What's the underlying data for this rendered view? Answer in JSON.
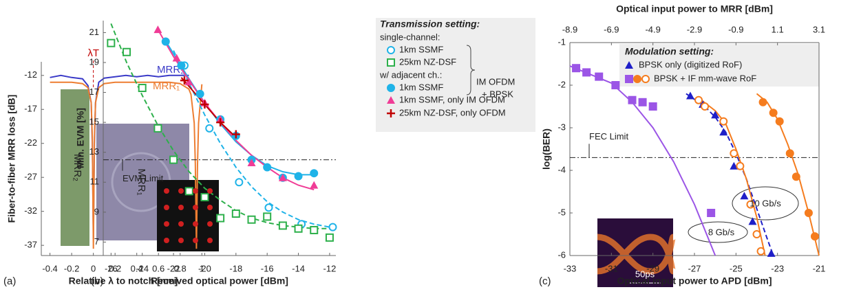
{
  "chart_data": [
    {
      "type": "line",
      "panel_label": "(a)",
      "x_label": "Relative λ to notch [nm]",
      "y_label": "Fiber-to-fiber MRR loss [dB]",
      "xlim": [
        -0.48,
        1.03
      ],
      "ylim": [
        -38.5,
        -10
      ],
      "xticks": [
        -0.4,
        -0.2,
        0,
        0.2,
        0.4,
        0.6,
        0.8,
        1
      ],
      "yticks": [
        -12,
        -17,
        -22,
        -27,
        -32,
        -37
      ],
      "marker_label": "λT",
      "marker_x": 0,
      "inset_labels": [
        "MRR₂",
        "MRR₁"
      ],
      "x": [
        -0.4,
        -0.3,
        -0.2,
        -0.1,
        -0.05,
        -0.02,
        -0.01,
        0,
        0.01,
        0.02,
        0.05,
        0.1,
        0.2,
        0.3,
        0.4,
        0.5,
        0.6,
        0.7,
        0.8,
        0.88,
        0.9,
        0.93,
        0.94,
        0.95,
        0.96,
        0.97,
        1.0
      ],
      "series": [
        {
          "name": "MRR₂",
          "color": "#3a3ac8",
          "values": [
            -12.3,
            -12,
            -12.3,
            -12.5,
            -13.5,
            -16,
            -22,
            -36,
            -22,
            -16,
            -13,
            -12.4,
            -12.2,
            -12,
            -12.2,
            -12,
            -12.2,
            -12,
            -12,
            -12,
            null,
            null,
            null,
            null,
            null,
            null,
            null
          ]
        },
        {
          "name": "MRR₁",
          "color": "#ed7d31",
          "values": [
            -13,
            -13,
            -13,
            -13.2,
            -13.8,
            -16,
            -21,
            -37.5,
            -21,
            -16,
            -13.8,
            -13.2,
            -13,
            -13,
            -13,
            -13,
            -13,
            -13,
            -13.2,
            -14,
            -14.8,
            -19,
            -25,
            -37.5,
            -25,
            -19,
            -13.3
          ]
        }
      ]
    },
    {
      "type": "scatter",
      "panel_label": "(b)",
      "x_label": "Received optical power [dBm]",
      "y_label": "Min. EVM [%]",
      "xlim": [
        -26.5,
        -11.6
      ],
      "ylim": [
        6.1,
        21.8
      ],
      "xticks": [
        -26,
        -24,
        -22,
        -20,
        -18,
        -16,
        -14,
        -12
      ],
      "yticks": [
        7,
        9,
        11,
        13,
        15,
        17,
        19,
        21
      ],
      "hline": {
        "value": 12.5,
        "label": "EVM Limit"
      },
      "legend_title": "Transmission setting:",
      "legend_groups": [
        "single-channel:",
        "w/ adjacent ch.:"
      ],
      "brace_labels": [
        "IM OFDM",
        "+ BPSK"
      ],
      "series": [
        {
          "name": "1km SSMF",
          "color": "#1fb3e8",
          "marker": "circle-open",
          "x": [
            -21.3,
            -19.7,
            -17.8,
            -15.9,
            -13.8,
            -11.8
          ],
          "values": [
            18.8,
            14.6,
            11.0,
            9.3,
            8.2,
            8.0
          ],
          "fit": {
            "dashed": true,
            "x": [
              -22,
              -21,
              -20,
              -19,
              -18,
              -17,
              -16,
              -15,
              -14,
              -13,
              -12
            ],
            "values": [
              19.8,
              17.6,
              15.5,
              13.6,
              12.0,
              10.7,
              9.7,
              9.0,
              8.5,
              8.2,
              8.0
            ]
          }
        },
        {
          "name": "25km NZ-DSF",
          "color": "#2db04b",
          "marker": "square-open",
          "x": [
            -26,
            -25,
            -24,
            -23,
            -22,
            -21,
            -20,
            -19,
            -18,
            -17,
            -16,
            -15,
            -14,
            -13,
            -12
          ],
          "values": [
            20.3,
            19.7,
            17.3,
            14.6,
            12.5,
            10.4,
            10.0,
            8.6,
            8.9,
            8.5,
            8.7,
            8.1,
            7.9,
            7.8,
            7.3
          ],
          "fit": {
            "dashed": true,
            "x": [
              -26,
              -25,
              -24,
              -23,
              -22,
              -21,
              -20,
              -19,
              -18,
              -17,
              -16,
              -15,
              -14,
              -13,
              -12
            ],
            "values": [
              21.6,
              19.0,
              16.8,
              14.8,
              13.1,
              11.7,
              10.6,
              9.8,
              9.1,
              8.6,
              8.3,
              8.1,
              8.0,
              7.9,
              7.9
            ]
          }
        },
        {
          "name": "1km SSMF",
          "color": "#1fb3e8",
          "marker": "circle",
          "x": [
            -22.5,
            -21.5,
            -20.3,
            -19,
            -18,
            -17,
            -16,
            -15,
            -14,
            -13
          ],
          "values": [
            20.4,
            18.8,
            16.9,
            15.2,
            14.1,
            12.5,
            12.0,
            11.3,
            11.4,
            11.6
          ],
          "fit": {
            "dashed": false,
            "x": [
              -22.6,
              -21,
              -20,
              -19,
              -18,
              -17,
              -16,
              -15,
              -14,
              -13
            ],
            "values": [
              20.6,
              17.9,
              16.3,
              14.9,
              13.7,
              12.8,
              12.1,
              11.7,
              11.5,
              11.5
            ]
          }
        },
        {
          "name": "1km SSMF, only IM OFDM",
          "color": "#f03c96",
          "marker": "triangle",
          "x": [
            -23,
            -21.8,
            -21,
            -20,
            -19,
            -17,
            -15,
            -13
          ],
          "values": [
            21.2,
            19.3,
            17.7,
            16.3,
            15.2,
            12.3,
            11.3,
            10.8
          ],
          "fit": {
            "dashed": false,
            "x": [
              -23,
              -22,
              -21,
              -20,
              -19,
              -18,
              -17,
              -16,
              -15,
              -14,
              -13
            ],
            "values": [
              21.2,
              19.4,
              17.8,
              16.3,
              15.0,
              13.8,
              12.8,
              12.0,
              11.3,
              10.8,
              10.5
            ]
          }
        },
        {
          "name": "25km NZ-DSF, only OFDM",
          "color": "#c00000",
          "marker": "plus",
          "x": [
            -21.3,
            -20,
            -19,
            -18
          ],
          "values": [
            17.8,
            16.2,
            15.0,
            14.2
          ],
          "fit": {
            "dashed": false,
            "x": [
              -21.5,
              -20,
              -19,
              -18
            ],
            "values": [
              18.0,
              16.2,
              15.0,
              14.0
            ]
          }
        }
      ]
    },
    {
      "type": "scatter",
      "panel_label": "(c)",
      "x_label": "Optical input power to APD [dBm]",
      "x2_label": "Optical input power to MRR [dBm]",
      "y_label": "log(BER)",
      "xlim": [
        -33,
        -21
      ],
      "x2lim": [
        -8.9,
        3.1
      ],
      "ylim": [
        -6,
        -1
      ],
      "xticks": [
        -33,
        -31,
        -29,
        -27,
        -25,
        -23,
        -21
      ],
      "x2ticks": [
        -8.9,
        -6.9,
        -4.9,
        -2.9,
        -0.9,
        1.1,
        3.1
      ],
      "yticks": [
        -1,
        -2,
        -3,
        -4,
        -5,
        -6
      ],
      "hline": {
        "value": -3.7,
        "label": "FEC Limit"
      },
      "legend_title": "Modulation setting:",
      "rate_labels": [
        "8 Gb/s",
        "10 Gb/s"
      ],
      "eye_label": "50ps",
      "series": [
        {
          "name": "BPSK only (digitized RoF)",
          "color": "#1f1fc8",
          "marker": "triangle",
          "x": [
            -27.2,
            -26.6,
            -26,
            -25.6,
            -25.1,
            -24.6,
            -24.2,
            -23.3
          ],
          "values": [
            -2.25,
            -2.45,
            -2.7,
            -3.1,
            -3.9,
            -4.6,
            -5.2,
            -5.95
          ],
          "fit": {
            "dashed": true,
            "x": [
              -27.4,
              -26.5,
              -26,
              -25.5,
              -25,
              -24.5,
              -24,
              -23.5,
              -23.2
            ],
            "values": [
              -2.2,
              -2.5,
              -2.75,
              -3.1,
              -3.6,
              -4.2,
              -4.9,
              -5.6,
              -6.0
            ]
          }
        },
        {
          "name": "BPSK + IF mm-wave RoF",
          "color": "#9b55e6",
          "marker": "square",
          "x": [
            -32.7,
            -32.2,
            -31.6,
            -30.8,
            -30,
            -29.5,
            -29,
            -26.2
          ],
          "values": [
            -1.6,
            -1.7,
            -1.8,
            -2.0,
            -2.35,
            -2.4,
            -2.5,
            -5.0
          ],
          "fit": {
            "dashed": false,
            "x": [
              -33,
              -31,
              -30,
              -29,
              -28,
              -27,
              -26
            ],
            "values": [
              -1.55,
              -1.95,
              -2.4,
              -3.0,
              -3.8,
              -4.8,
              -6.0
            ]
          }
        },
        {
          "color": "#f57c1e",
          "marker": "circle",
          "x": [
            -23.7,
            -23.2,
            -22.9,
            -22.4,
            -22.1,
            -21.5,
            -21.2
          ],
          "values": [
            -2.4,
            -2.65,
            -2.85,
            -3.6,
            -4.15,
            -5.0,
            -5.55
          ],
          "fit": {
            "dashed": false,
            "x": [
              -24,
              -23.5,
              -23,
              -22.5,
              -22,
              -21.5,
              -21
            ],
            "values": [
              -2.2,
              -2.4,
              -2.8,
              -3.4,
              -4.1,
              -5.0,
              -6.0
            ]
          }
        },
        {
          "color": "#f57c1e",
          "marker": "circle-open",
          "x": [
            -26.8,
            -26.5,
            -25.6,
            -25.1,
            -24.8,
            -24.3,
            -24,
            -23.8
          ],
          "values": [
            -2.35,
            -2.5,
            -2.85,
            -3.6,
            -3.9,
            -4.8,
            -5.5,
            -5.9
          ],
          "fit": {
            "dashed": false,
            "x": [
              -26.8,
              -26,
              -25.5,
              -25,
              -24.5,
              -24,
              -23.6
            ],
            "values": [
              -2.3,
              -2.6,
              -2.9,
              -3.5,
              -4.2,
              -5.1,
              -6.0
            ]
          }
        }
      ]
    }
  ]
}
